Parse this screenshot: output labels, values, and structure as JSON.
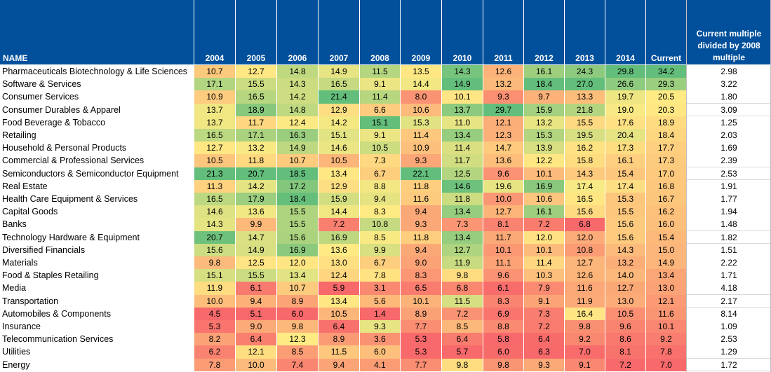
{
  "colors": {
    "header": "#02509b",
    "low": "#f8696b",
    "mid": "#ffeb84",
    "high": "#63be7b"
  },
  "chart_data": {
    "type": "heatmap",
    "name_header": "NAME",
    "columns": [
      "2004",
      "2005",
      "2006",
      "2007",
      "2008",
      "2009",
      "2010",
      "2011",
      "2012",
      "2013",
      "2014",
      "Current"
    ],
    "ratio_header": "Current multiple divided by 2008 multiple",
    "rows": [
      {
        "name": "Pharmaceuticals Biotechnology & Life Sciences",
        "values": [
          "10.7",
          "12.7",
          "14.8",
          "14.9",
          "11.5",
          "13.5",
          "14.3",
          "12.6",
          "16.1",
          "24.3",
          "29.8",
          "34.2"
        ],
        "ratio": "2.98"
      },
      {
        "name": "Software & Services",
        "values": [
          "17.1",
          "15.5",
          "14.3",
          "16.5",
          "9.1",
          "14.4",
          "14.9",
          "13.2",
          "18.4",
          "27.0",
          "26.6",
          "29.3"
        ],
        "ratio": "3.22"
      },
      {
        "name": "Consumer Services",
        "values": [
          "10.9",
          "16.5",
          "14.2",
          "21.4",
          "11.4",
          "8.0",
          "10.1",
          "9.3",
          "9.7",
          "13.3",
          "19.7",
          "20.5"
        ],
        "ratio": "1.80"
      },
      {
        "name": "Consumer Durables & Apparel",
        "values": [
          "13.7",
          "18.9",
          "14.8",
          "12.9",
          "6.6",
          "10.6",
          "13.7",
          "29.7",
          "15.9",
          "21.8",
          "19.0",
          "20.3"
        ],
        "ratio": "3.09"
      },
      {
        "name": "Food Beverage & Tobacco",
        "values": [
          "13.7",
          "11.7",
          "12.4",
          "14.2",
          "15.1",
          "15.3",
          "11.0",
          "12.1",
          "13.2",
          "15.5",
          "17.6",
          "18.9"
        ],
        "ratio": "1.25"
      },
      {
        "name": "Retailing",
        "values": [
          "16.5",
          "17.1",
          "16.3",
          "15.1",
          "9.1",
          "11.4",
          "13.4",
          "12.3",
          "15.3",
          "19.5",
          "20.4",
          "18.4"
        ],
        "ratio": "2.03"
      },
      {
        "name": "Household & Personal Products",
        "values": [
          "12.7",
          "13.2",
          "14.9",
          "14.6",
          "10.5",
          "10.9",
          "11.4",
          "14.7",
          "13.9",
          "16.2",
          "17.3",
          "17.7"
        ],
        "ratio": "1.69"
      },
      {
        "name": "Commercial & Professional Services",
        "values": [
          "10.5",
          "11.8",
          "10.7",
          "10.5",
          "7.3",
          "9.3",
          "11.7",
          "13.6",
          "12.2",
          "15.8",
          "16.1",
          "17.3"
        ],
        "ratio": "2.39"
      },
      {
        "name": "Semiconductors & Semiconductor Equipment",
        "values": [
          "21.3",
          "20.7",
          "18.5",
          "13.4",
          "6.7",
          "22.1",
          "12.5",
          "9.6",
          "10.1",
          "14.3",
          "15.4",
          "17.0"
        ],
        "ratio": "2.53"
      },
      {
        "name": "Real Estate",
        "values": [
          "11.3",
          "14.2",
          "17.2",
          "12.9",
          "8.8",
          "11.8",
          "14.6",
          "19.6",
          "16.9",
          "17.4",
          "17.4",
          "16.8"
        ],
        "ratio": "1.91"
      },
      {
        "name": "Health Care Equipment & Services",
        "values": [
          "16.5",
          "17.9",
          "18.4",
          "15.9",
          "9.4",
          "11.6",
          "11.8",
          "10.0",
          "10.6",
          "16.5",
          "15.3",
          "16.7"
        ],
        "ratio": "1.77"
      },
      {
        "name": "Capital Goods",
        "values": [
          "14.6",
          "13.6",
          "15.5",
          "14.4",
          "8.3",
          "9.4",
          "13.4",
          "12.7",
          "16.1",
          "15.6",
          "15.5",
          "16.2"
        ],
        "ratio": "1.94"
      },
      {
        "name": "Banks",
        "values": [
          "14.3",
          "9.9",
          "15.5",
          "7.2",
          "10.8",
          "9.3",
          "7.3",
          "8.1",
          "7.2",
          "6.8",
          "15.6",
          "16.0"
        ],
        "ratio": "1.48"
      },
      {
        "name": "Technology Hardware & Equipment",
        "values": [
          "20.7",
          "14.7",
          "15.6",
          "16.9",
          "8.5",
          "11.8",
          "13.4",
          "11.7",
          "12.0",
          "12.0",
          "15.6",
          "15.4"
        ],
        "ratio": "1.82"
      },
      {
        "name": "Diversified Financials",
        "values": [
          "15.6",
          "14.9",
          "16.9",
          "13.6",
          "9.9",
          "9.4",
          "12.7",
          "10.1",
          "10.1",
          "10.8",
          "14.3",
          "15.0"
        ],
        "ratio": "1.51"
      },
      {
        "name": "Materials",
        "values": [
          "9.8",
          "12.5",
          "12.0",
          "13.0",
          "6.7",
          "9.0",
          "11.9",
          "11.1",
          "11.4",
          "12.7",
          "13.2",
          "14.9"
        ],
        "ratio": "2.22"
      },
      {
        "name": "Food & Staples Retailing",
        "values": [
          "15.1",
          "15.5",
          "13.4",
          "12.4",
          "7.8",
          "8.3",
          "9.8",
          "9.6",
          "10.3",
          "12.6",
          "14.0",
          "13.4"
        ],
        "ratio": "1.71"
      },
      {
        "name": "Media",
        "values": [
          "11.9",
          "6.1",
          "10.7",
          "5.9",
          "3.1",
          "6.5",
          "6.8",
          "6.1",
          "7.9",
          "11.6",
          "12.7",
          "13.0"
        ],
        "ratio": "4.18"
      },
      {
        "name": "Transportation",
        "values": [
          "10.0",
          "9.4",
          "8.9",
          "13.4",
          "5.6",
          "10.1",
          "11.5",
          "8.3",
          "9.1",
          "11.9",
          "13.0",
          "12.1"
        ],
        "ratio": "2.17"
      },
      {
        "name": "Automobiles & Components",
        "values": [
          "4.5",
          "5.1",
          "6.0",
          "10.5",
          "1.4",
          "8.9",
          "7.2",
          "6.9",
          "7.3",
          "16.4",
          "10.5",
          "11.6"
        ],
        "ratio": "8.14"
      },
      {
        "name": "Insurance",
        "values": [
          "5.3",
          "9.0",
          "9.8",
          "6.4",
          "9.3",
          "7.7",
          "8.5",
          "8.8",
          "7.2",
          "9.8",
          "9.6",
          "10.1"
        ],
        "ratio": "1.09"
      },
      {
        "name": "Telecommunication Services",
        "values": [
          "8.2",
          "6.4",
          "12.3",
          "8.9",
          "3.6",
          "5.3",
          "6.4",
          "5.8",
          "6.4",
          "9.2",
          "8.6",
          "9.2"
        ],
        "ratio": "2.53"
      },
      {
        "name": "Utilities",
        "values": [
          "6.2",
          "12.1",
          "8.5",
          "11.5",
          "6.0",
          "5.3",
          "5.7",
          "6.0",
          "6.3",
          "7.0",
          "8.1",
          "7.8"
        ],
        "ratio": "1.29"
      },
      {
        "name": "Energy",
        "values": [
          "7.8",
          "10.0",
          "7.4",
          "9.4",
          "4.1",
          "7.7",
          "9.8",
          "9.8",
          "9.3",
          "9.1",
          "7.2",
          "7.0"
        ],
        "ratio": "1.72"
      }
    ]
  }
}
